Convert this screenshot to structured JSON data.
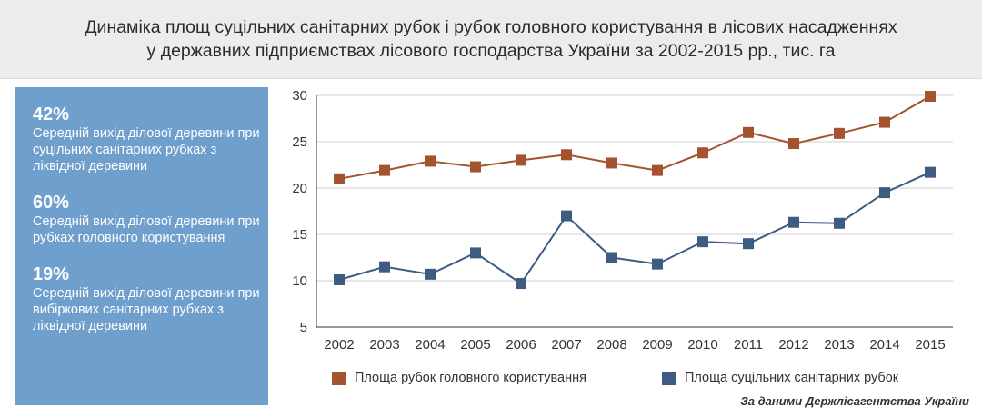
{
  "title": {
    "line1": "Динаміка площ суцільних санітарних рубок і рубок головного користування в лісових насадженнях",
    "line2": "у державних підприємствах лісового господарства України за 2002-2015 рр., тис. га"
  },
  "stats": [
    {
      "value": "42%",
      "desc": "Середній вихід ділової деревини при суцільних санітарних рубках з ліквідної деревини"
    },
    {
      "value": "60%",
      "desc": "Середній вихід ділової деревини при рубках головного користування"
    },
    {
      "value": "19%",
      "desc": "Середній вихід ділової деревини при вибіркових санітарних рубках з ліквідної деревини"
    }
  ],
  "chart_data": {
    "type": "line",
    "x": [
      "2002",
      "2003",
      "2004",
      "2005",
      "2006",
      "2007",
      "2008",
      "2009",
      "2010",
      "2011",
      "2012",
      "2013",
      "2014",
      "2015"
    ],
    "ylim": [
      5,
      30
    ],
    "yticks": [
      5,
      10,
      15,
      20,
      25,
      30
    ],
    "grid": "horizontal",
    "legend_position": "bottom",
    "series": [
      {
        "name": "Площа рубок головного користування",
        "color": "#a4532e",
        "values": [
          21.0,
          21.9,
          22.9,
          22.3,
          23.0,
          23.6,
          22.7,
          21.9,
          23.8,
          26.0,
          24.8,
          25.9,
          27.1,
          29.9
        ]
      },
      {
        "name": "Площа суцільних санітарних рубок",
        "color": "#3e5b82",
        "values": [
          10.1,
          11.5,
          10.7,
          13.0,
          9.7,
          17.0,
          12.5,
          11.8,
          14.2,
          14.0,
          16.3,
          16.2,
          19.5,
          21.7
        ]
      }
    ]
  },
  "source": "За даними Держлісагентства України"
}
